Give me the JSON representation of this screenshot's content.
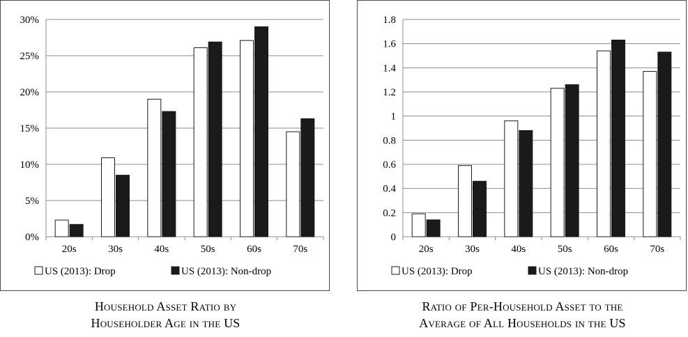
{
  "chart_data": [
    {
      "type": "bar",
      "categories": [
        "20s",
        "30s",
        "40s",
        "50s",
        "60s",
        "70s"
      ],
      "yticks": [
        "0%",
        "5%",
        "10%",
        "15%",
        "20%",
        "25%",
        "30%"
      ],
      "ylim": [
        0,
        0.3
      ],
      "grid": true,
      "legend_position": "bottom",
      "series": [
        {
          "name": "US (2013): Drop",
          "color": "#ffffff",
          "values": [
            0.023,
            0.109,
            0.19,
            0.261,
            0.271,
            0.145
          ]
        },
        {
          "name": "US (2013): Non-drop",
          "color": "#1a1a1a",
          "values": [
            0.017,
            0.085,
            0.173,
            0.269,
            0.29,
            0.163
          ]
        }
      ],
      "caption_lines": [
        "Household Asset Ratio by",
        "Householder Age in the US"
      ]
    },
    {
      "type": "bar",
      "categories": [
        "20s",
        "30s",
        "40s",
        "50s",
        "60s",
        "70s"
      ],
      "yticks": [
        "0",
        "0.2",
        "0.4",
        "0.6",
        "0.8",
        "1",
        "1.2",
        "1.4",
        "1.6",
        "1.8"
      ],
      "ylim": [
        0,
        1.8
      ],
      "grid": true,
      "legend_position": "bottom",
      "series": [
        {
          "name": "US (2013): Drop",
          "color": "#ffffff",
          "values": [
            0.19,
            0.59,
            0.96,
            1.23,
            1.54,
            1.37
          ]
        },
        {
          "name": "US (2013): Non-drop",
          "color": "#1a1a1a",
          "values": [
            0.14,
            0.46,
            0.88,
            1.26,
            1.63,
            1.53
          ]
        }
      ],
      "caption_lines": [
        "Ratio of Per-Household Asset to the",
        "Average of All Households in the US"
      ]
    }
  ]
}
